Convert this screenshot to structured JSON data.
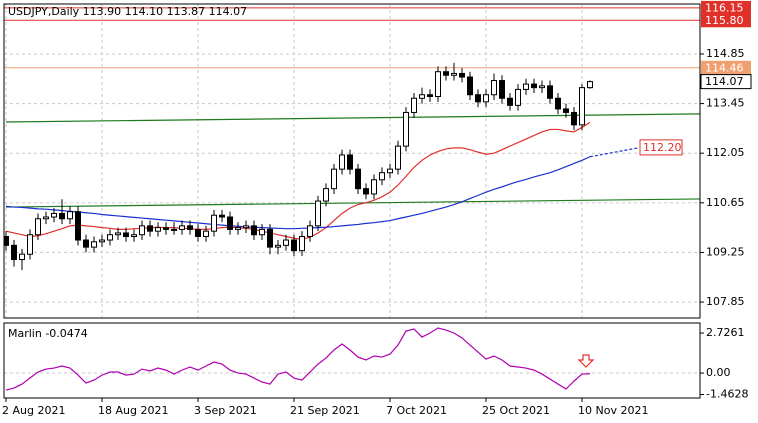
{
  "chart_data": {
    "type": "candlestick",
    "title": "USDJPY,Daily  113.90 114.10 113.87 114.07",
    "categories": [
      "2 Aug 2021",
      null,
      null,
      null,
      null,
      null,
      null,
      null,
      null,
      null,
      null,
      null,
      "18 Aug 2021",
      null,
      null,
      null,
      null,
      null,
      null,
      null,
      null,
      null,
      null,
      null,
      "3 Sep 2021",
      null,
      null,
      null,
      null,
      null,
      null,
      null,
      null,
      null,
      null,
      null,
      "21 Sep 2021",
      null,
      null,
      null,
      null,
      null,
      null,
      null,
      null,
      null,
      null,
      null,
      "7 Oct 2021",
      null,
      null,
      null,
      null,
      null,
      null,
      null,
      null,
      null,
      null,
      null,
      "25 Oct 2021",
      null,
      null,
      null,
      null,
      null,
      null,
      null,
      null,
      null,
      null,
      null,
      "10 Nov 2021",
      null
    ],
    "open": [
      109.7,
      109.45,
      109.05,
      109.2,
      109.75,
      110.2,
      110.25,
      110.35,
      110.2,
      110.4,
      109.6,
      109.4,
      109.55,
      109.6,
      109.75,
      109.8,
      109.7,
      109.75,
      110.0,
      109.85,
      109.95,
      109.9,
      109.9,
      110.0,
      109.9,
      109.7,
      109.85,
      110.3,
      110.25,
      109.9,
      109.95,
      110.0,
      109.75,
      109.9,
      109.4,
      109.45,
      109.6,
      109.3,
      109.7,
      110.0,
      110.7,
      111.05,
      111.6,
      112.0,
      111.6,
      111.05,
      110.9,
      111.3,
      111.5,
      111.6,
      112.25,
      113.2,
      113.6,
      113.7,
      113.65,
      114.35,
      114.25,
      114.3,
      114.2,
      113.7,
      113.5,
      113.7,
      114.1,
      113.6,
      113.4,
      113.85,
      114.0,
      113.9,
      113.95,
      113.6,
      113.3,
      113.2,
      112.85,
      113.9
    ],
    "high": [
      109.85,
      109.6,
      109.35,
      109.9,
      110.35,
      110.4,
      110.5,
      110.75,
      110.55,
      110.55,
      109.75,
      109.7,
      109.75,
      109.9,
      109.95,
      109.95,
      109.9,
      110.15,
      110.15,
      110.1,
      110.1,
      110.1,
      110.15,
      110.15,
      110.05,
      110.0,
      110.45,
      110.45,
      110.4,
      110.1,
      110.15,
      110.15,
      110.05,
      110.05,
      109.6,
      109.75,
      109.75,
      109.85,
      110.15,
      110.85,
      111.2,
      111.75,
      112.15,
      112.15,
      111.75,
      111.2,
      111.45,
      111.65,
      111.75,
      112.4,
      113.35,
      113.75,
      113.9,
      113.85,
      114.5,
      114.5,
      114.6,
      114.45,
      114.35,
      113.85,
      113.85,
      114.3,
      114.25,
      113.75,
      114.0,
      114.15,
      114.15,
      114.1,
      114.1,
      113.75,
      113.45,
      113.35,
      114.0,
      114.1
    ],
    "low": [
      109.3,
      108.85,
      108.75,
      109.05,
      109.6,
      110.05,
      110.1,
      110.05,
      110.05,
      109.45,
      109.25,
      109.25,
      109.4,
      109.45,
      109.6,
      109.55,
      109.55,
      109.6,
      109.7,
      109.7,
      109.75,
      109.75,
      109.75,
      109.75,
      109.55,
      109.55,
      109.7,
      110.1,
      109.75,
      109.75,
      109.8,
      109.6,
      109.6,
      109.2,
      109.2,
      109.3,
      109.15,
      109.15,
      109.55,
      109.85,
      110.55,
      110.9,
      111.45,
      111.45,
      110.9,
      110.75,
      110.75,
      111.15,
      111.35,
      111.45,
      112.1,
      113.05,
      113.45,
      113.5,
      113.5,
      114.1,
      114.1,
      114.05,
      113.55,
      113.35,
      113.35,
      113.55,
      113.45,
      113.25,
      113.25,
      113.7,
      113.75,
      113.75,
      113.45,
      113.15,
      113.05,
      112.7,
      112.7,
      113.87
    ],
    "close": [
      109.45,
      109.05,
      109.2,
      109.75,
      110.2,
      110.25,
      110.35,
      110.2,
      110.4,
      109.6,
      109.4,
      109.55,
      109.6,
      109.75,
      109.8,
      109.7,
      109.75,
      110.0,
      109.85,
      109.95,
      109.9,
      109.9,
      110.0,
      109.9,
      109.7,
      109.85,
      110.3,
      110.25,
      109.9,
      109.95,
      110.0,
      109.75,
      109.9,
      109.4,
      109.45,
      109.6,
      109.3,
      109.7,
      110.0,
      110.7,
      111.05,
      111.6,
      112.0,
      111.6,
      111.05,
      110.9,
      111.3,
      111.5,
      111.6,
      112.25,
      113.2,
      113.6,
      113.7,
      113.65,
      114.35,
      114.25,
      114.3,
      114.2,
      113.7,
      113.5,
      113.7,
      114.1,
      113.6,
      113.4,
      113.85,
      114.0,
      113.9,
      113.95,
      113.6,
      113.3,
      113.2,
      112.85,
      113.9,
      114.07
    ],
    "last_label": "114.07",
    "up_color": "#ffffff",
    "down_color": "#000000",
    "ylim": [
      107.4,
      116.26
    ],
    "yticks": [
      114.85,
      113.45,
      112.05,
      110.65,
      109.25,
      107.85
    ],
    "grid": true,
    "lines": [
      {
        "color": "#e0302a",
        "values": [
          109.85,
          109.8,
          109.75,
          109.7,
          109.72,
          109.78,
          109.85,
          109.92,
          110.0,
          110.02,
          110.0,
          109.98,
          109.95,
          109.93,
          109.9,
          109.9,
          109.92,
          109.93,
          109.95,
          109.96,
          109.95,
          109.95,
          109.93,
          109.92,
          109.9,
          109.9,
          109.92,
          109.95,
          109.96,
          109.95,
          109.93,
          109.9,
          109.85,
          109.8,
          109.75,
          109.7,
          109.65,
          109.62,
          109.68,
          109.8,
          109.95,
          110.15,
          110.35,
          110.5,
          110.6,
          110.65,
          110.72,
          110.82,
          110.95,
          111.15,
          111.4,
          111.65,
          111.85,
          112.0,
          112.1,
          112.17,
          112.2,
          112.2,
          112.15,
          112.08,
          112.02,
          112.05,
          112.15,
          112.25,
          112.35,
          112.45,
          112.55,
          112.65,
          112.72,
          112.72,
          112.68,
          112.65,
          112.78,
          112.92
        ]
      },
      {
        "color": "#1a2fd0",
        "values": [
          110.55,
          110.53,
          110.52,
          110.5,
          110.48,
          110.47,
          110.45,
          110.43,
          110.41,
          110.39,
          110.37,
          110.35,
          110.32,
          110.3,
          110.28,
          110.26,
          110.24,
          110.22,
          110.2,
          110.18,
          110.16,
          110.14,
          110.12,
          110.1,
          110.08,
          110.06,
          110.04,
          110.02,
          110.0,
          109.99,
          109.97,
          109.96,
          109.95,
          109.94,
          109.93,
          109.92,
          109.92,
          109.93,
          109.94,
          109.95,
          109.96,
          109.98,
          110.0,
          110.02,
          110.04,
          110.07,
          110.09,
          110.12,
          110.15,
          110.2,
          110.25,
          110.3,
          110.35,
          110.41,
          110.47,
          110.53,
          110.6,
          110.68,
          110.77,
          110.86,
          110.95,
          111.03,
          111.1,
          111.18,
          111.25,
          111.31,
          111.38,
          111.44,
          111.5,
          111.58,
          111.67,
          111.76,
          111.85,
          111.95
        ]
      }
    ],
    "forecast": {
      "color": "#1a2fd0",
      "x": [
        73,
        79
      ],
      "values": [
        111.95,
        112.2
      ],
      "label": "112.20"
    },
    "trendlines": [
      {
        "color": "#1e7a1e",
        "x": [
          0,
          87
        ],
        "values": [
          112.93,
          113.16
        ]
      },
      {
        "color": "#1e7a1e",
        "x": [
          0,
          87
        ],
        "values": [
          110.53,
          110.76
        ]
      }
    ],
    "levels": [
      {
        "value": 116.15,
        "label": "116.15",
        "color": "#e0302a"
      },
      {
        "value": 115.8,
        "label": "115.80",
        "color": "#e0302a"
      },
      {
        "value": 114.46,
        "label": "114.46",
        "color": "#f0a070"
      }
    ],
    "indicator": {
      "label": "Marlin -0.0474",
      "color": "#b000b0",
      "ylim": [
        -1.7,
        3.41
      ],
      "yticks": [
        2.7261,
        {
          "value": 0,
          "label": "0.00"
        },
        -1.4628
      ],
      "values": [
        -1.16,
        -1.02,
        -0.75,
        -0.34,
        0.07,
        0.27,
        0.34,
        0.48,
        0.34,
        -0.14,
        -0.68,
        -0.48,
        -0.14,
        0.07,
        0.07,
        -0.14,
        -0.07,
        0.27,
        0.14,
        0.34,
        0.2,
        -0.07,
        0.2,
        0.41,
        0.2,
        0.48,
        0.75,
        0.61,
        0.2,
        0.0,
        -0.07,
        -0.34,
        -0.61,
        -0.75,
        -0.07,
        0.07,
        -0.34,
        -0.48,
        0.07,
        0.61,
        1.02,
        1.57,
        1.98,
        1.57,
        1.09,
        0.89,
        1.16,
        1.09,
        1.29,
        1.91,
        2.86,
        3.0,
        2.45,
        2.73,
        3.07,
        2.93,
        2.73,
        2.39,
        1.91,
        1.43,
        0.95,
        1.16,
        0.89,
        0.48,
        0.41,
        0.34,
        0.2,
        -0.07,
        -0.41,
        -0.75,
        -1.09,
        -0.55,
        -0.07,
        -0.0474
      ]
    }
  }
}
